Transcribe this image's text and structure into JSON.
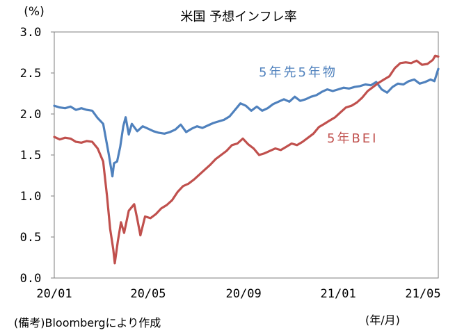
{
  "chart_data": {
    "type": "line",
    "title": "米国 予想インフレ率",
    "y_unit_label": "(%)",
    "x_unit_label": "(年/月)",
    "source_note": "(備考)Bloombergにより作成",
    "x_tick_labels": [
      "20/01",
      "20/05",
      "20/09",
      "21/01",
      "21/05"
    ],
    "y_tick_labels": [
      "0.0",
      "0.5",
      "1.0",
      "1.5",
      "2.0",
      "2.5",
      "3.0"
    ],
    "ylim": [
      0,
      3
    ],
    "xlim": [
      "2020-01-01",
      "2021-05-10"
    ],
    "grid": false,
    "series": [
      {
        "name": "5年先5年物",
        "color": "#4f81bd",
        "points": [
          [
            "2020-01-01",
            2.1
          ],
          [
            "2020-01-08",
            2.08
          ],
          [
            "2020-01-15",
            2.07
          ],
          [
            "2020-01-22",
            2.09
          ],
          [
            "2020-01-29",
            2.05
          ],
          [
            "2020-02-05",
            2.07
          ],
          [
            "2020-02-12",
            2.05
          ],
          [
            "2020-02-19",
            2.04
          ],
          [
            "2020-02-26",
            1.95
          ],
          [
            "2020-03-04",
            1.88
          ],
          [
            "2020-03-11",
            1.52
          ],
          [
            "2020-03-16",
            1.24
          ],
          [
            "2020-03-18",
            1.4
          ],
          [
            "2020-03-22",
            1.42
          ],
          [
            "2020-03-26",
            1.6
          ],
          [
            "2020-03-30",
            1.85
          ],
          [
            "2020-04-02",
            1.96
          ],
          [
            "2020-04-06",
            1.75
          ],
          [
            "2020-04-10",
            1.88
          ],
          [
            "2020-04-17",
            1.79
          ],
          [
            "2020-04-24",
            1.85
          ],
          [
            "2020-05-01",
            1.82
          ],
          [
            "2020-05-08",
            1.79
          ],
          [
            "2020-05-15",
            1.77
          ],
          [
            "2020-05-22",
            1.76
          ],
          [
            "2020-05-29",
            1.78
          ],
          [
            "2020-06-05",
            1.81
          ],
          [
            "2020-06-12",
            1.87
          ],
          [
            "2020-06-19",
            1.78
          ],
          [
            "2020-06-26",
            1.82
          ],
          [
            "2020-07-03",
            1.85
          ],
          [
            "2020-07-10",
            1.83
          ],
          [
            "2020-07-17",
            1.86
          ],
          [
            "2020-07-24",
            1.89
          ],
          [
            "2020-07-31",
            1.91
          ],
          [
            "2020-08-07",
            1.93
          ],
          [
            "2020-08-14",
            1.97
          ],
          [
            "2020-08-21",
            2.05
          ],
          [
            "2020-08-28",
            2.13
          ],
          [
            "2020-09-04",
            2.1
          ],
          [
            "2020-09-11",
            2.04
          ],
          [
            "2020-09-18",
            2.09
          ],
          [
            "2020-09-25",
            2.04
          ],
          [
            "2020-10-02",
            2.07
          ],
          [
            "2020-10-09",
            2.12
          ],
          [
            "2020-10-16",
            2.15
          ],
          [
            "2020-10-23",
            2.18
          ],
          [
            "2020-10-30",
            2.15
          ],
          [
            "2020-11-06",
            2.21
          ],
          [
            "2020-11-13",
            2.16
          ],
          [
            "2020-11-20",
            2.18
          ],
          [
            "2020-11-27",
            2.21
          ],
          [
            "2020-12-04",
            2.23
          ],
          [
            "2020-12-11",
            2.27
          ],
          [
            "2020-12-18",
            2.3
          ],
          [
            "2020-12-25",
            2.28
          ],
          [
            "2021-01-01",
            2.3
          ],
          [
            "2021-01-08",
            2.32
          ],
          [
            "2021-01-15",
            2.31
          ],
          [
            "2021-01-22",
            2.33
          ],
          [
            "2021-01-29",
            2.34
          ],
          [
            "2021-02-05",
            2.36
          ],
          [
            "2021-02-12",
            2.35
          ],
          [
            "2021-02-19",
            2.39
          ],
          [
            "2021-02-26",
            2.3
          ],
          [
            "2021-03-05",
            2.26
          ],
          [
            "2021-03-12",
            2.33
          ],
          [
            "2021-03-19",
            2.37
          ],
          [
            "2021-03-26",
            2.36
          ],
          [
            "2021-04-02",
            2.4
          ],
          [
            "2021-04-09",
            2.42
          ],
          [
            "2021-04-16",
            2.37
          ],
          [
            "2021-04-23",
            2.39
          ],
          [
            "2021-04-30",
            2.42
          ],
          [
            "2021-05-05",
            2.4
          ],
          [
            "2021-05-10",
            2.55
          ]
        ]
      },
      {
        "name": "5年BEI",
        "color": "#c0504d",
        "points": [
          [
            "2020-01-01",
            1.72
          ],
          [
            "2020-01-08",
            1.69
          ],
          [
            "2020-01-15",
            1.71
          ],
          [
            "2020-01-22",
            1.7
          ],
          [
            "2020-01-29",
            1.66
          ],
          [
            "2020-02-05",
            1.65
          ],
          [
            "2020-02-12",
            1.67
          ],
          [
            "2020-02-19",
            1.66
          ],
          [
            "2020-02-26",
            1.58
          ],
          [
            "2020-03-04",
            1.42
          ],
          [
            "2020-03-09",
            1.0
          ],
          [
            "2020-03-13",
            0.6
          ],
          [
            "2020-03-17",
            0.35
          ],
          [
            "2020-03-19",
            0.18
          ],
          [
            "2020-03-23",
            0.45
          ],
          [
            "2020-03-27",
            0.68
          ],
          [
            "2020-03-31",
            0.55
          ],
          [
            "2020-04-06",
            0.82
          ],
          [
            "2020-04-13",
            0.9
          ],
          [
            "2020-04-17",
            0.72
          ],
          [
            "2020-04-21",
            0.52
          ],
          [
            "2020-04-27",
            0.75
          ],
          [
            "2020-05-04",
            0.73
          ],
          [
            "2020-05-11",
            0.78
          ],
          [
            "2020-05-18",
            0.85
          ],
          [
            "2020-05-25",
            0.89
          ],
          [
            "2020-06-01",
            0.95
          ],
          [
            "2020-06-08",
            1.05
          ],
          [
            "2020-06-15",
            1.12
          ],
          [
            "2020-06-22",
            1.15
          ],
          [
            "2020-06-29",
            1.2
          ],
          [
            "2020-07-06",
            1.26
          ],
          [
            "2020-07-13",
            1.32
          ],
          [
            "2020-07-20",
            1.38
          ],
          [
            "2020-07-27",
            1.45
          ],
          [
            "2020-08-03",
            1.5
          ],
          [
            "2020-08-10",
            1.55
          ],
          [
            "2020-08-17",
            1.62
          ],
          [
            "2020-08-24",
            1.64
          ],
          [
            "2020-08-31",
            1.7
          ],
          [
            "2020-09-07",
            1.63
          ],
          [
            "2020-09-14",
            1.58
          ],
          [
            "2020-09-21",
            1.5
          ],
          [
            "2020-09-28",
            1.52
          ],
          [
            "2020-10-05",
            1.55
          ],
          [
            "2020-10-12",
            1.58
          ],
          [
            "2020-10-19",
            1.56
          ],
          [
            "2020-10-26",
            1.6
          ],
          [
            "2020-11-02",
            1.64
          ],
          [
            "2020-11-09",
            1.62
          ],
          [
            "2020-11-16",
            1.66
          ],
          [
            "2020-11-23",
            1.71
          ],
          [
            "2020-11-30",
            1.76
          ],
          [
            "2020-12-07",
            1.84
          ],
          [
            "2020-12-14",
            1.88
          ],
          [
            "2020-12-21",
            1.92
          ],
          [
            "2020-12-28",
            1.96
          ],
          [
            "2021-01-04",
            2.02
          ],
          [
            "2021-01-11",
            2.08
          ],
          [
            "2021-01-18",
            2.1
          ],
          [
            "2021-01-25",
            2.14
          ],
          [
            "2021-02-01",
            2.2
          ],
          [
            "2021-02-08",
            2.28
          ],
          [
            "2021-02-15",
            2.33
          ],
          [
            "2021-02-22",
            2.38
          ],
          [
            "2021-03-01",
            2.42
          ],
          [
            "2021-03-08",
            2.46
          ],
          [
            "2021-03-15",
            2.56
          ],
          [
            "2021-03-22",
            2.62
          ],
          [
            "2021-03-29",
            2.63
          ],
          [
            "2021-04-05",
            2.62
          ],
          [
            "2021-04-12",
            2.65
          ],
          [
            "2021-04-19",
            2.6
          ],
          [
            "2021-04-26",
            2.61
          ],
          [
            "2021-05-03",
            2.66
          ],
          [
            "2021-05-06",
            2.71
          ],
          [
            "2021-05-10",
            2.7
          ]
        ]
      }
    ]
  }
}
